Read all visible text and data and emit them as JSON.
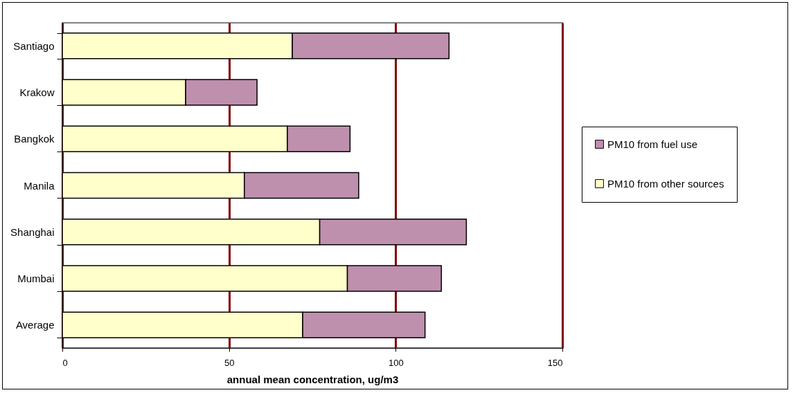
{
  "chart_data": {
    "type": "bar",
    "orientation": "horizontal",
    "stacked": true,
    "xlabel": "annual mean concentration, ug/m3",
    "categories": [
      "Santiago",
      "Krakow",
      "Bangkok",
      "Manila",
      "Shanghai",
      "Mumbai",
      "Average"
    ],
    "series": [
      {
        "name": "PM10 from other sources",
        "color": "#ffffcc",
        "values": [
          69,
          37,
          67.5,
          54.6,
          77.2,
          85.5,
          72.1
        ]
      },
      {
        "name": "PM10 from fuel use",
        "color": "#bf8fae",
        "values": [
          47,
          21.4,
          18.8,
          34.3,
          44,
          28.2,
          36.7
        ]
      }
    ],
    "xlim": [
      0,
      150
    ],
    "xticks": [
      0,
      50,
      100,
      150
    ],
    "grid": "x",
    "legend": "right"
  }
}
